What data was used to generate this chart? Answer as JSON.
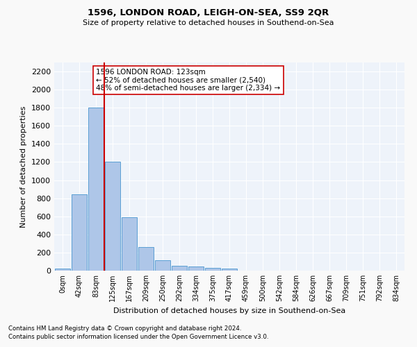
{
  "title": "1596, LONDON ROAD, LEIGH-ON-SEA, SS9 2QR",
  "subtitle": "Size of property relative to detached houses in Southend-on-Sea",
  "xlabel": "Distribution of detached houses by size in Southend-on-Sea",
  "ylabel": "Number of detached properties",
  "footnote1": "Contains HM Land Registry data © Crown copyright and database right 2024.",
  "footnote2": "Contains public sector information licensed under the Open Government Licence v3.0.",
  "bar_labels": [
    "0sqm",
    "42sqm",
    "83sqm",
    "125sqm",
    "167sqm",
    "209sqm",
    "250sqm",
    "292sqm",
    "334sqm",
    "375sqm",
    "417sqm",
    "459sqm",
    "500sqm",
    "542sqm",
    "584sqm",
    "626sqm",
    "667sqm",
    "709sqm",
    "751sqm",
    "792sqm",
    "834sqm"
  ],
  "bar_values": [
    25,
    840,
    1800,
    1200,
    590,
    260,
    115,
    50,
    45,
    30,
    20,
    0,
    0,
    0,
    0,
    0,
    0,
    0,
    0,
    0,
    0
  ],
  "bar_color": "#aec6e8",
  "bar_edge_color": "#5a9fd4",
  "background_color": "#eef3fa",
  "fig_background_color": "#f9f9f9",
  "grid_color": "#ffffff",
  "annotation_text": "1596 LONDON ROAD: 123sqm\n← 52% of detached houses are smaller (2,540)\n48% of semi-detached houses are larger (2,334) →",
  "vline_color": "#cc0000",
  "annotation_box_color": "#ffffff",
  "annotation_box_edge": "#cc0000",
  "ylim": [
    0,
    2300
  ],
  "yticks": [
    0,
    200,
    400,
    600,
    800,
    1000,
    1200,
    1400,
    1600,
    1800,
    2000,
    2200
  ]
}
